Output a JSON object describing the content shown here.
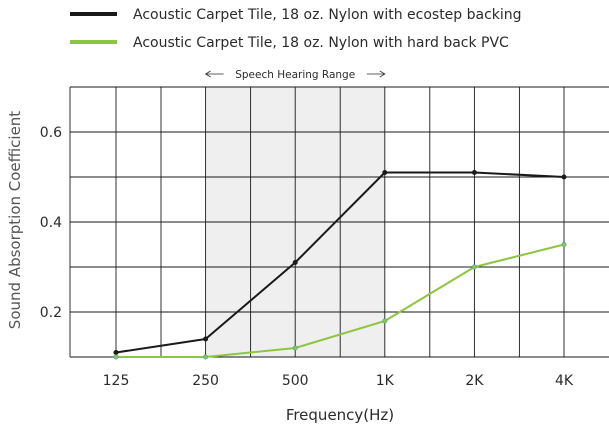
{
  "chart_data": {
    "type": "line",
    "x": [
      "125",
      "250",
      "500",
      "1K",
      "2K",
      "4K"
    ],
    "series": [
      {
        "name": "Acoustic Carpet Tile, 18 oz. Nylon with ecostep backing",
        "color": "#1a1a1a",
        "values": [
          0.11,
          0.14,
          0.31,
          0.51,
          0.51,
          0.5
        ]
      },
      {
        "name": "Acoustic Carpet Tile, 18 oz. Nylon with hard back PVC",
        "color": "#8dc63f",
        "values": [
          0.1,
          0.1,
          0.12,
          0.18,
          0.3,
          0.35
        ]
      }
    ],
    "y_ticks": [
      {
        "value": 0.2,
        "label": "0.2"
      },
      {
        "value": 0.4,
        "label": "0.4"
      },
      {
        "value": 0.6,
        "label": "0.6"
      }
    ],
    "ylim": [
      0.1,
      0.7
    ],
    "xlabel": "Frequency(Hz)",
    "ylabel": "Sound Absorption Coefficient",
    "grid": true,
    "legend_position": "top",
    "shaded_region": {
      "label": "Speech Hearing Range",
      "from": "250",
      "to": "1K",
      "color": "#efefef"
    }
  }
}
